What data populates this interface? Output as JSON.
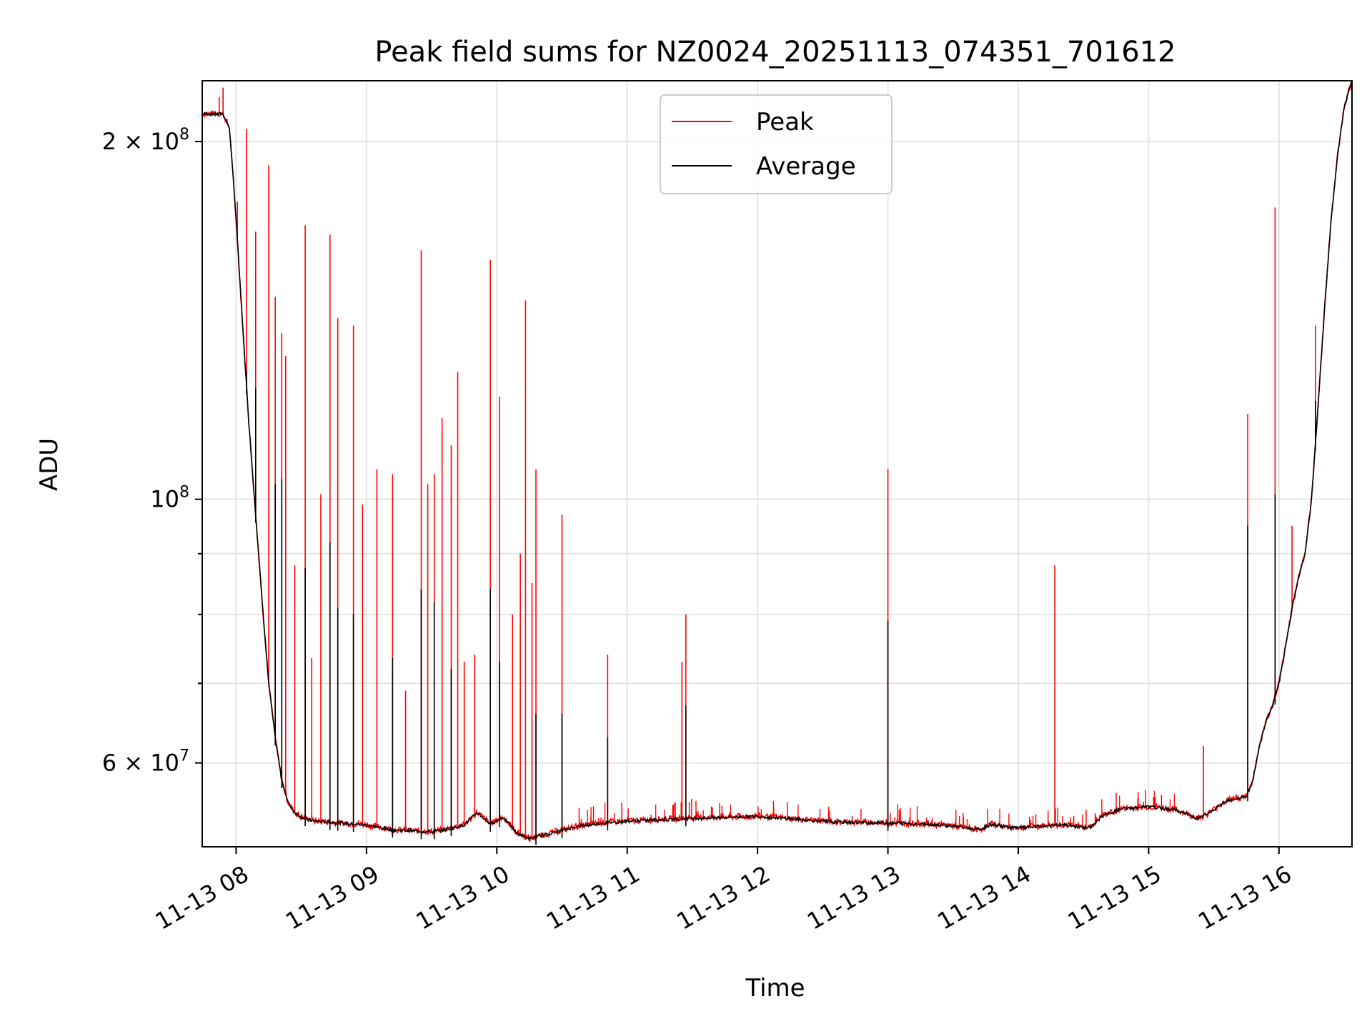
{
  "chart_data": {
    "type": "line",
    "title": "Peak field sums for NZ0024_20251113_074351_701612",
    "xlabel": "Time",
    "ylabel": "ADU",
    "yscale": "log",
    "ylim": [
      51000000,
      225000000
    ],
    "xlim": [
      7.74,
      16.56
    ],
    "x_ticks": [
      {
        "value": 8,
        "label": "11-13 08"
      },
      {
        "value": 9,
        "label": "11-13 09"
      },
      {
        "value": 10,
        "label": "11-13 10"
      },
      {
        "value": 11,
        "label": "11-13 11"
      },
      {
        "value": 12,
        "label": "11-13 12"
      },
      {
        "value": 13,
        "label": "11-13 13"
      },
      {
        "value": 14,
        "label": "11-13 14"
      },
      {
        "value": 15,
        "label": "11-13 15"
      },
      {
        "value": 16,
        "label": "11-13 16"
      }
    ],
    "y_major_ticks": [
      {
        "value": 60000000,
        "mantissa": "6",
        "exp": "7"
      },
      {
        "value": 100000000,
        "mantissa": "",
        "exp": "8"
      },
      {
        "value": 200000000,
        "mantissa": "2",
        "exp": "8"
      }
    ],
    "y_minor_ticks": [
      70000000,
      80000000,
      90000000
    ],
    "grid": true,
    "legend": {
      "position": "upper-center",
      "entries": [
        {
          "label": "Peak",
          "color": "#ff0000"
        },
        {
          "label": "Average",
          "color": "#000000"
        }
      ]
    },
    "baseline": {
      "x": [
        7.74,
        7.9,
        7.95,
        8.0,
        8.05,
        8.1,
        8.15,
        8.2,
        8.25,
        8.3,
        8.35,
        8.4,
        8.45,
        8.5,
        8.6,
        8.7,
        9.0,
        9.2,
        9.5,
        9.6,
        9.75,
        9.85,
        9.95,
        10.05,
        10.15,
        10.25,
        10.4,
        10.6,
        10.8,
        11.0,
        11.5,
        12.0,
        12.3,
        12.6,
        13.0,
        13.3,
        13.5,
        13.7,
        13.8,
        13.9,
        14.0,
        14.2,
        14.35,
        14.55,
        14.65,
        14.8,
        15.0,
        15.2,
        15.38,
        15.45,
        15.6,
        15.75,
        15.8,
        15.85,
        15.9,
        15.95,
        16.0,
        16.05,
        16.1,
        16.15,
        16.2,
        16.25,
        16.3,
        16.35,
        16.4,
        16.45,
        16.5,
        16.56
      ],
      "y": [
        211000000,
        211000000,
        205000000,
        172000000,
        140000000,
        115000000,
        97000000,
        82000000,
        70000000,
        63000000,
        58000000,
        55500000,
        54500000,
        54000000,
        53600000,
        53500000,
        53200000,
        52700000,
        52500000,
        52700000,
        53200000,
        54500000,
        53300000,
        54000000,
        52400000,
        51800000,
        52300000,
        53000000,
        53400000,
        53600000,
        53900000,
        54100000,
        53800000,
        53500000,
        53400000,
        53300000,
        53100000,
        52700000,
        53300000,
        53000000,
        52900000,
        53100000,
        53200000,
        52900000,
        54200000,
        54900000,
        55100000,
        54800000,
        53900000,
        54300000,
        55800000,
        56200000,
        58000000,
        62000000,
        65000000,
        67000000,
        70000000,
        75000000,
        81000000,
        86000000,
        90000000,
        100000000,
        120000000,
        145000000,
        172000000,
        195000000,
        214000000,
        225000000
      ]
    },
    "peak_spikes": {
      "x": [
        7.87,
        7.9,
        8.01,
        8.08,
        8.15,
        8.25,
        8.3,
        8.35,
        8.38,
        8.45,
        8.53,
        8.58,
        8.65,
        8.72,
        8.78,
        8.9,
        8.97,
        9.08,
        9.2,
        9.3,
        9.42,
        9.47,
        9.52,
        9.58,
        9.65,
        9.7,
        9.75,
        9.83,
        9.95,
        10.02,
        10.12,
        10.18,
        10.22,
        10.27,
        10.3,
        10.5,
        10.85,
        11.42,
        11.45,
        13.0,
        14.28,
        15.42,
        15.76,
        15.97,
        16.1,
        16.28
      ],
      "y": [
        218000000,
        222000000,
        178000000,
        205000000,
        168000000,
        191000000,
        148000000,
        138000000,
        132000000,
        88000000,
        170000000,
        73500000,
        101000000,
        167000000,
        142000000,
        140000000,
        99000000,
        106000000,
        105000000,
        69000000,
        162000000,
        103000000,
        105000000,
        117000000,
        111000000,
        128000000,
        73000000,
        74000000,
        159000000,
        122000000,
        80000000,
        90000000,
        147000000,
        85000000,
        106000000,
        97000000,
        74000000,
        73000000,
        80000000,
        106000000,
        88000000,
        62000000,
        118000000,
        176000000,
        95000000,
        140000000
      ]
    },
    "average_spikes": {
      "x": [
        8.08,
        8.15,
        8.3,
        8.35,
        8.53,
        8.72,
        8.78,
        8.9,
        9.2,
        9.42,
        9.52,
        9.65,
        9.95,
        10.02,
        10.3,
        10.5,
        10.85,
        11.45,
        13.0,
        15.76,
        15.97,
        16.28
      ],
      "y": [
        128000000,
        124000000,
        103000000,
        104000000,
        87500000,
        92000000,
        81000000,
        80000000,
        73500000,
        84000000,
        82000000,
        72000000,
        84000000,
        73000000,
        66000000,
        66000000,
        63000000,
        67000000,
        79000000,
        95000000,
        101000000,
        121000000
      ]
    }
  }
}
